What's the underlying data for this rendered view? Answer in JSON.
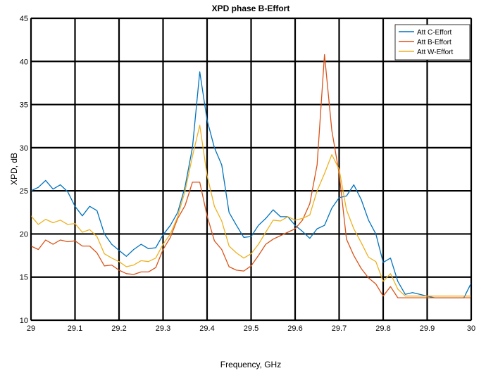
{
  "chart_data": {
    "type": "line",
    "title": "XPD phase B-Effort",
    "xlabel": "Frequency, GHz",
    "ylabel": "XPD, dB",
    "xlim": [
      29,
      30
    ],
    "ylim": [
      10,
      45
    ],
    "xticks": [
      29,
      29.1,
      29.2,
      29.3,
      29.4,
      29.5,
      29.6,
      29.7,
      29.8,
      29.9,
      30
    ],
    "yticks": [
      10,
      15,
      20,
      25,
      30,
      35,
      40,
      45
    ],
    "grid": true,
    "legend_position": "top-right",
    "x": [
      29.0,
      29.0167,
      29.0333,
      29.05,
      29.0667,
      29.0833,
      29.1,
      29.1167,
      29.1333,
      29.15,
      29.1667,
      29.1833,
      29.2,
      29.2167,
      29.2333,
      29.25,
      29.2667,
      29.2833,
      29.3,
      29.3167,
      29.3333,
      29.35,
      29.3667,
      29.3833,
      29.4,
      29.4167,
      29.4333,
      29.45,
      29.4667,
      29.4833,
      29.5,
      29.5167,
      29.5333,
      29.55,
      29.5667,
      29.5833,
      29.6,
      29.6167,
      29.6333,
      29.65,
      29.6667,
      29.6833,
      29.7,
      29.7167,
      29.7333,
      29.75,
      29.7667,
      29.7833,
      29.8,
      29.8167,
      29.8333,
      29.85,
      29.8667,
      29.8833,
      29.9,
      29.9167,
      29.9333,
      29.95,
      29.9667,
      29.9833,
      30.0
    ],
    "series": [
      {
        "name": "Att C-Effort",
        "color": "#0072BD",
        "values": [
          25.0,
          25.4,
          26.2,
          25.2,
          25.7,
          24.9,
          23.2,
          22.1,
          23.2,
          22.7,
          20.0,
          18.8,
          18.1,
          17.4,
          18.2,
          18.8,
          18.3,
          18.4,
          19.9,
          21.0,
          22.5,
          25.5,
          30.0,
          38.8,
          33.2,
          30.0,
          28.0,
          22.5,
          21.0,
          19.6,
          19.7,
          21.0,
          21.8,
          22.8,
          22.0,
          22.0,
          21.0,
          20.3,
          19.5,
          20.6,
          21.0,
          23.0,
          24.2,
          24.4,
          25.7,
          24.0,
          21.6,
          20.0,
          16.7,
          17.2,
          14.5,
          13.0,
          13.2,
          13.0,
          12.8,
          12.6,
          12.6,
          12.6,
          12.6,
          12.6,
          14.3
        ]
      },
      {
        "name": "Att B-Effort",
        "color": "#D95319",
        "values": [
          18.6,
          18.2,
          19.3,
          18.8,
          19.3,
          19.1,
          19.2,
          18.6,
          18.6,
          17.8,
          16.3,
          16.4,
          15.8,
          15.4,
          15.3,
          15.6,
          15.6,
          16.1,
          18.2,
          19.6,
          21.8,
          23.3,
          26.0,
          26.0,
          22.1,
          19.2,
          18.2,
          16.2,
          15.8,
          15.7,
          16.3,
          17.5,
          18.8,
          19.4,
          19.8,
          20.2,
          20.6,
          21.6,
          23.5,
          28.0,
          40.8,
          32.0,
          27.0,
          19.4,
          17.5,
          16.0,
          14.9,
          14.2,
          12.8,
          13.9,
          12.6,
          12.6,
          12.6,
          12.6,
          12.6,
          12.6,
          12.6,
          12.6,
          12.6,
          12.6,
          12.6
        ]
      },
      {
        "name": "Att W-Effort",
        "color": "#EDB120",
        "values": [
          22.1,
          21.1,
          21.7,
          21.3,
          21.6,
          21.1,
          21.2,
          20.2,
          20.5,
          19.7,
          17.7,
          17.2,
          16.8,
          16.2,
          16.4,
          16.9,
          16.8,
          17.2,
          18.8,
          20.0,
          22.0,
          25.0,
          29.0,
          32.6,
          26.8,
          23.2,
          21.5,
          18.6,
          17.8,
          17.2,
          17.7,
          18.8,
          20.2,
          21.6,
          21.5,
          22.0,
          21.6,
          21.8,
          22.2,
          25.0,
          27.0,
          29.2,
          27.5,
          22.8,
          20.6,
          19.0,
          17.3,
          16.8,
          14.5,
          15.4,
          13.6,
          12.8,
          12.8,
          12.8,
          12.8,
          12.8,
          12.8,
          12.8,
          12.8,
          12.8,
          12.8
        ]
      }
    ]
  }
}
